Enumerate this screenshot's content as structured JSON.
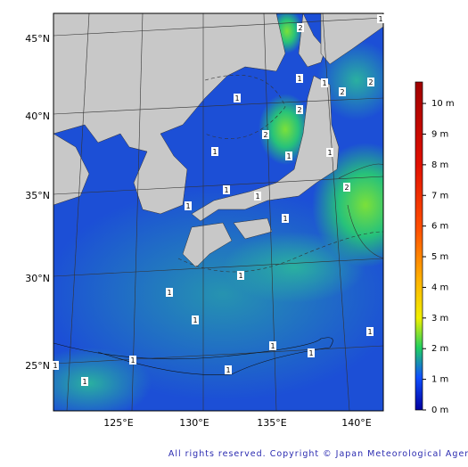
{
  "map": {
    "lat_labels": [
      "45°N",
      "40°N",
      "35°N",
      "30°N",
      "25°N"
    ],
    "lon_labels": [
      "125°E",
      "130°E",
      "135°E",
      "140°E"
    ],
    "contour_labels": [
      "2",
      "1",
      "1",
      "2",
      "2",
      "1",
      "1",
      "2",
      "2",
      "1",
      "1",
      "1",
      "1",
      "1",
      "2",
      "1",
      "1",
      "1",
      "1",
      "1",
      "1",
      "1",
      "1",
      "1",
      "1",
      "1",
      "1"
    ],
    "colorbar": {
      "range": [
        0,
        10.7
      ],
      "ticks": [
        {
          "value": 0,
          "label": "0 m"
        },
        {
          "value": 1,
          "label": "1 m"
        },
        {
          "value": 2,
          "label": "2 m"
        },
        {
          "value": 3,
          "label": "3 m"
        },
        {
          "value": 4,
          "label": "4 m"
        },
        {
          "value": 5,
          "label": "5 m"
        },
        {
          "value": 6,
          "label": "6 m"
        },
        {
          "value": 7,
          "label": "7 m"
        },
        {
          "value": 8,
          "label": "8 m"
        },
        {
          "value": 9,
          "label": "9 m"
        },
        {
          "value": 10,
          "label": "10 m"
        }
      ]
    },
    "copyright": "All rights reserved. Copyright © Japan Meteorological Agency"
  }
}
